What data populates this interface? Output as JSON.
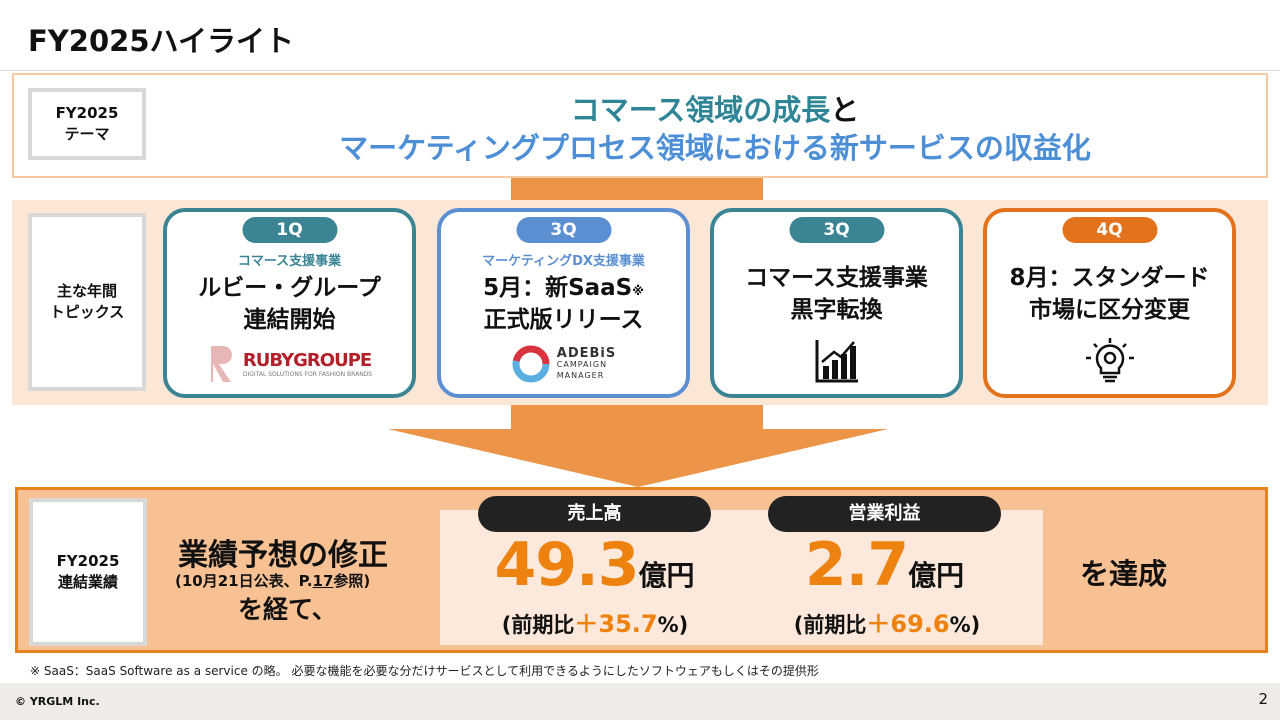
{
  "title": "FY2025ハイライト",
  "theme": {
    "label_line1": "FY2025",
    "label_line2": "テーマ",
    "line1_a": "コマース領域の成長",
    "line1_b": "と",
    "line2": "マーケティングプロセス領域における新サービスの収益化"
  },
  "topics": {
    "label_line1": "主な年間",
    "label_line2": "トピックス",
    "cards": [
      {
        "quarter": "1Q",
        "segment": "コマース支援事業",
        "line1": "ルビー・グループ",
        "line2": "連結開始",
        "logo": "RUBYGROUPE",
        "logo_sub": "DIGITAL SOLUTIONS FOR FASHION BRANDS"
      },
      {
        "quarter": "3Q",
        "segment": "マーケティングDX支援事業",
        "line1": "5月：新SaaS",
        "mark": "※",
        "line2": "正式版リリース",
        "logo": "ADEBiS",
        "logo_sub1": "CAMPAIGN",
        "logo_sub2": "MANAGER"
      },
      {
        "quarter": "3Q",
        "line1": "コマース支援事業",
        "line2": "黒字転換",
        "icon": "bar-chart-up-icon"
      },
      {
        "quarter": "4Q",
        "line1": "8月：スタンダード",
        "line2": "市場に区分変更",
        "icon": "lightbulb-gear-icon"
      }
    ]
  },
  "results": {
    "label_line1": "FY2025",
    "label_line2": "連結業績",
    "revision_head": "業績予想の修正",
    "revision_note_a": "(10月21日公表、P.",
    "revision_note_page": "17",
    "revision_note_b": "参照)",
    "revision_tail": "を経て、",
    "sales": {
      "label": "売上高",
      "value": "49.3",
      "unit": "億円",
      "yoy_a": "(前期比",
      "yoy_v": "＋35.7",
      "yoy_b": "%)"
    },
    "op": {
      "label": "営業利益",
      "value": "2.7",
      "unit": "億円",
      "yoy_a": "(前期比",
      "yoy_v": "＋69.6",
      "yoy_b": "%)"
    },
    "achieved": "を達成"
  },
  "footnote": "※ SaaS：SaaS Software as a service の略。 必要な機能を必要な分だけサービスとして利用できるようにしたソフトウェアもしくはその提供形",
  "footer": {
    "copyright": "© YRGLM Inc.",
    "page": "2"
  },
  "colors": {
    "teal": "#2f8595",
    "blue": "#4c8fd6",
    "orange": "#ee820f",
    "band": "#fce6d6"
  }
}
